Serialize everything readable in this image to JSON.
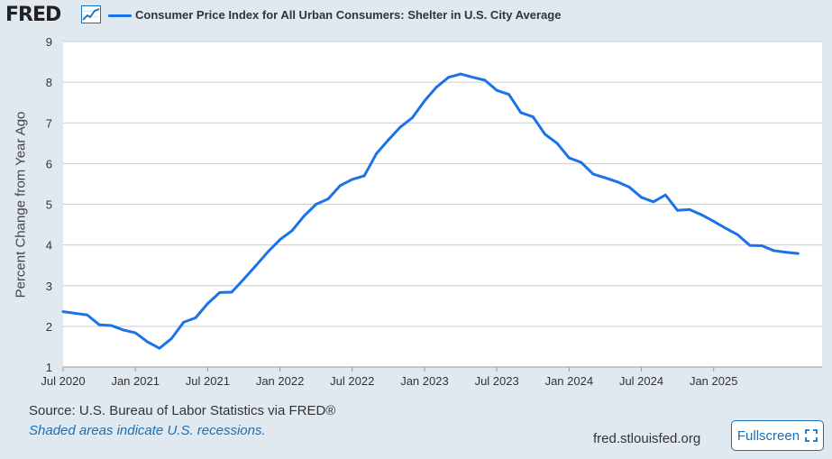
{
  "header": {
    "logo_text": "FRED",
    "logo_icon": "trend-graph-icon",
    "series_label": "Consumer Price Index for All Urban Consumers: Shelter in U.S. City Average",
    "series_color": "#1a73e8"
  },
  "footer": {
    "source": "Source: U.S. Bureau of Labor Statistics via FRED®",
    "shaded_note": "Shaded areas indicate U.S. recessions.",
    "site": "fred.stlouisfed.org",
    "fullscreen_label": "Fullscreen",
    "fullscreen_icon": "expand-icon"
  },
  "chart_data": {
    "type": "line",
    "title": "",
    "xlabel": "",
    "ylabel": "Percent Change from Year Ago",
    "ylim": [
      1,
      9
    ],
    "yticks": [
      1,
      2,
      3,
      4,
      5,
      6,
      7,
      8,
      9
    ],
    "xlim": [
      "2020-07",
      "2025-10"
    ],
    "xticks": [
      {
        "date": "2020-07",
        "label": "Jul 2020"
      },
      {
        "date": "2021-01",
        "label": "Jan 2021"
      },
      {
        "date": "2021-07",
        "label": "Jul 2021"
      },
      {
        "date": "2022-01",
        "label": "Jan 2022"
      },
      {
        "date": "2022-07",
        "label": "Jul 2022"
      },
      {
        "date": "2023-01",
        "label": "Jan 2023"
      },
      {
        "date": "2023-07",
        "label": "Jul 2023"
      },
      {
        "date": "2024-01",
        "label": "Jan 2024"
      },
      {
        "date": "2024-07",
        "label": "Jul 2024"
      },
      {
        "date": "2025-01",
        "label": "Jan 2025"
      }
    ],
    "grid": true,
    "colors": {
      "line": "#1a73e8",
      "grid": "#cccccc",
      "plot_bg": "#ffffff"
    },
    "series": [
      {
        "name": "Consumer Price Index for All Urban Consumers: Shelter in U.S. City Average",
        "x": [
          "2020-07",
          "2020-08",
          "2020-09",
          "2020-10",
          "2020-11",
          "2020-12",
          "2021-01",
          "2021-02",
          "2021-03",
          "2021-04",
          "2021-05",
          "2021-06",
          "2021-07",
          "2021-08",
          "2021-09",
          "2021-10",
          "2021-11",
          "2021-12",
          "2022-01",
          "2022-02",
          "2022-03",
          "2022-04",
          "2022-05",
          "2022-06",
          "2022-07",
          "2022-08",
          "2022-09",
          "2022-10",
          "2022-11",
          "2022-12",
          "2023-01",
          "2023-02",
          "2023-03",
          "2023-04",
          "2023-05",
          "2023-06",
          "2023-07",
          "2023-08",
          "2023-09",
          "2023-10",
          "2023-11",
          "2023-12",
          "2024-01",
          "2024-02",
          "2024-03",
          "2024-04",
          "2024-05",
          "2024-06",
          "2024-07",
          "2024-08",
          "2024-09",
          "2024-10",
          "2024-11",
          "2024-12",
          "2025-01",
          "2025-02",
          "2025-03",
          "2025-04",
          "2025-05",
          "2025-06",
          "2025-07",
          "2025-08"
        ],
        "y": [
          2.36,
          2.32,
          2.28,
          2.04,
          2.02,
          1.91,
          1.84,
          1.62,
          1.46,
          1.7,
          2.1,
          2.21,
          2.56,
          2.83,
          2.84,
          3.16,
          3.49,
          3.83,
          4.13,
          4.35,
          4.71,
          5.0,
          5.13,
          5.46,
          5.61,
          5.7,
          6.24,
          6.58,
          6.9,
          7.13,
          7.54,
          7.88,
          8.12,
          8.2,
          8.12,
          8.05,
          7.8,
          7.7,
          7.25,
          7.15,
          6.72,
          6.5,
          6.14,
          6.03,
          5.74,
          5.65,
          5.55,
          5.42,
          5.17,
          5.06,
          5.23,
          4.85,
          4.87,
          4.74,
          4.58,
          4.41,
          4.25,
          3.99,
          3.98,
          3.86,
          3.82,
          3.79
        ]
      }
    ]
  }
}
